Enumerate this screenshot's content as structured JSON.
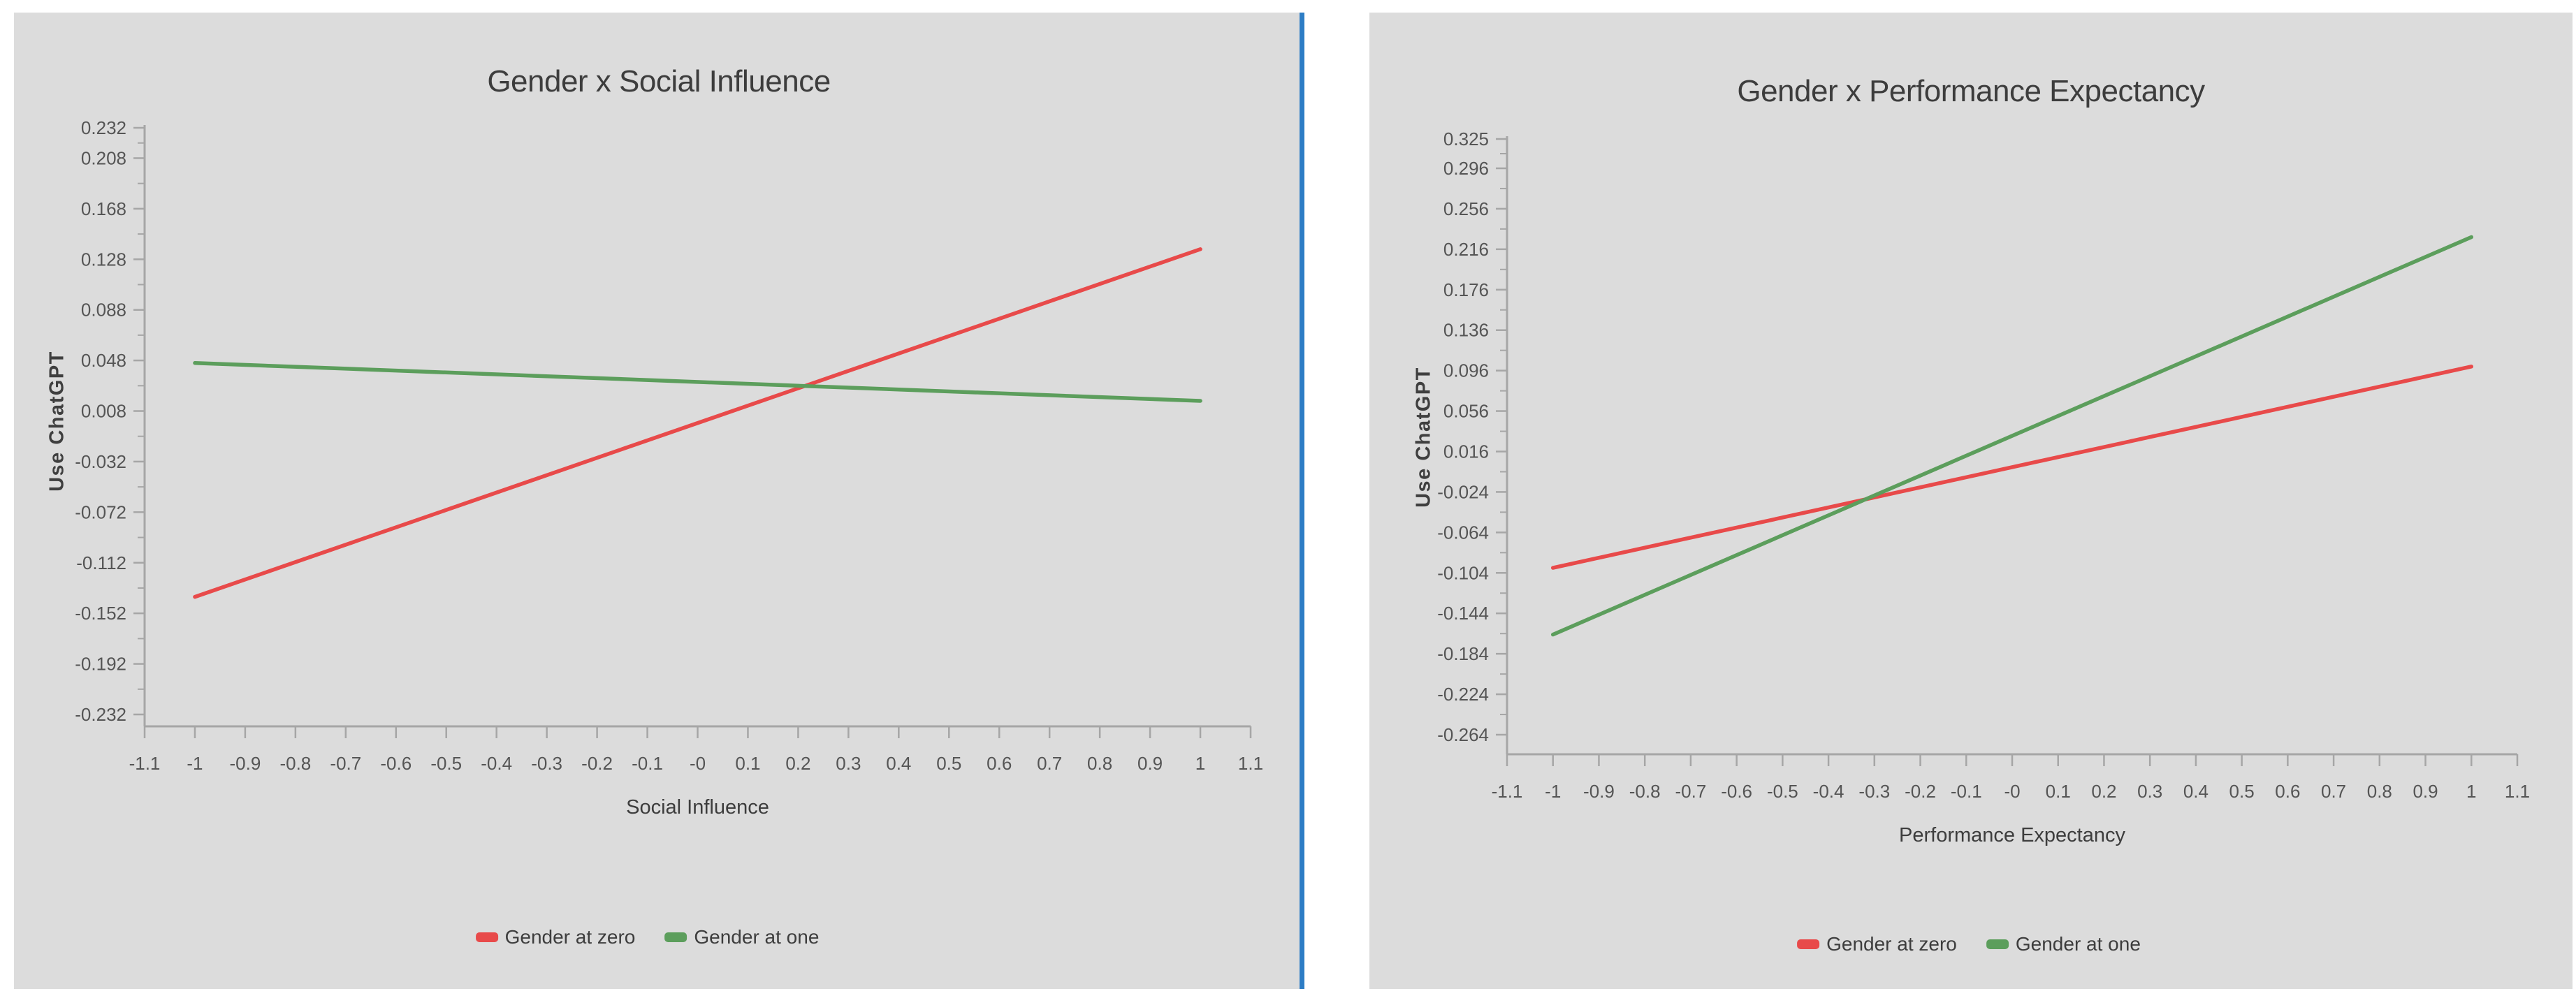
{
  "page": {
    "background": "#ffffff",
    "panel_background": "#dcdcdc",
    "divider_color": "#2d7dc5",
    "axis_color": "#a6a6a6",
    "tick_label_color": "#555555"
  },
  "chart_data": [
    {
      "type": "line",
      "title": "Gender x Social Influence",
      "xlabel": "Social Influence",
      "ylabel": "Use ChatGPT",
      "xlim": [
        -1.1,
        1.1
      ],
      "ylim": [
        -0.232,
        0.232
      ],
      "grid": false,
      "legend_position": "bottom",
      "x_tick_labels": [
        "-1.1",
        "-1",
        "-0.9",
        "-0.8",
        "-0.7",
        "-0.6",
        "-0.5",
        "-0.4",
        "-0.3",
        "-0.2",
        "-0.1",
        "-0",
        "0.1",
        "0.2",
        "0.3",
        "0.4",
        "0.5",
        "0.6",
        "0.7",
        "0.8",
        "0.9",
        "1",
        "1.1"
      ],
      "y_tick_labels": [
        "0.232",
        "0.208",
        "0.168",
        "0.128",
        "0.088",
        "0.048",
        "0.008",
        "-0.032",
        "-0.072",
        "-0.112",
        "-0.152",
        "-0.192",
        "-0.232"
      ],
      "series": [
        {
          "name": "Gender at zero",
          "color": "#e84a4a",
          "points": [
            [
              -1,
              -0.139
            ],
            [
              1,
              0.136
            ]
          ]
        },
        {
          "name": "Gender at one",
          "color": "#5c9e5c",
          "points": [
            [
              -1,
              0.046
            ],
            [
              1,
              0.016
            ]
          ]
        }
      ]
    },
    {
      "type": "line",
      "title": "Gender x Performance Expectancy",
      "xlabel": "Performance Expectancy",
      "ylabel": "Use ChatGPT",
      "xlim": [
        -1.1,
        1.1
      ],
      "ylim": [
        -0.264,
        0.325
      ],
      "grid": false,
      "legend_position": "bottom",
      "x_tick_labels": [
        "-1.1",
        "-1",
        "-0.9",
        "-0.8",
        "-0.7",
        "-0.6",
        "-0.5",
        "-0.4",
        "-0.3",
        "-0.2",
        "-0.1",
        "-0",
        "0.1",
        "0.2",
        "0.3",
        "0.4",
        "0.5",
        "0.6",
        "0.7",
        "0.8",
        "0.9",
        "1",
        "1.1"
      ],
      "y_tick_labels": [
        "0.325",
        "0.296",
        "0.256",
        "0.216",
        "0.176",
        "0.136",
        "0.096",
        "0.056",
        "0.016",
        "-0.024",
        "-0.064",
        "-0.104",
        "-0.144",
        "-0.184",
        "-0.224",
        "-0.264"
      ],
      "series": [
        {
          "name": "Gender at zero",
          "color": "#e84a4a",
          "points": [
            [
              -1,
              -0.099
            ],
            [
              1,
              0.1
            ]
          ]
        },
        {
          "name": "Gender at one",
          "color": "#5c9e5c",
          "points": [
            [
              -1,
              -0.165
            ],
            [
              1,
              0.228
            ]
          ]
        }
      ]
    }
  ]
}
